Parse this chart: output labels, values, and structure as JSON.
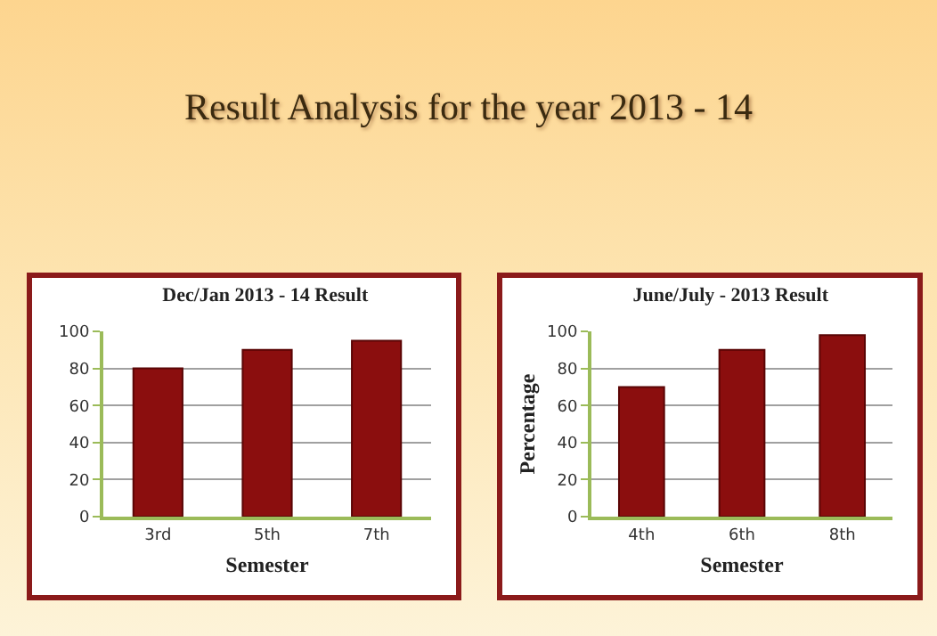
{
  "chart_data": [
    {
      "type": "other",
      "title": "Result Analysis for the year 2013 - 14"
    },
    {
      "type": "bar",
      "title": "Dec/Jan 2013 - 14 Result",
      "xlabel": "Semester",
      "categories": [
        "3rd",
        "5th",
        "7th"
      ],
      "values": [
        80,
        90,
        95
      ],
      "color": "#8b0e0e",
      "ylim": [
        0,
        100
      ],
      "yticks": [
        0,
        20,
        40,
        60,
        80,
        100
      ],
      "grid": "y",
      "legend": false
    },
    {
      "type": "bar",
      "title": "June/July - 2013 Result",
      "xlabel": "Semester",
      "ylabel": "Percentage",
      "categories": [
        "4th",
        "6th",
        "8th"
      ],
      "values": [
        70,
        90,
        98
      ],
      "color": "#8b0e0e",
      "ylim": [
        0,
        100
      ],
      "yticks": [
        0,
        20,
        40,
        60,
        80,
        100
      ],
      "grid": "y",
      "legend": false
    }
  ]
}
